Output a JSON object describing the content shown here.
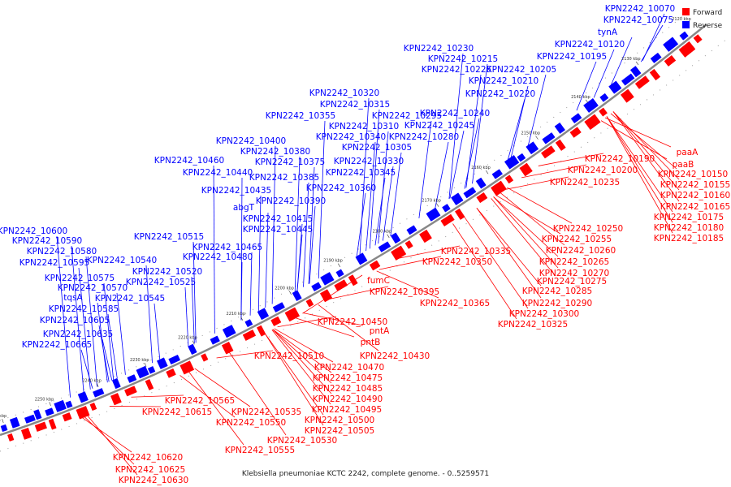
{
  "caption": "Klebsiella pneumoniae KCTC 2242, complete genome. - 0..5259571",
  "legend": [
    {
      "label": "Forward",
      "color": "#ff0000"
    },
    {
      "label": "Reverse",
      "color": "#0000ff"
    }
  ],
  "colors": {
    "forward": "#ff0000",
    "reverse": "#0000ff",
    "backbone": "#888888"
  },
  "ticks": [
    "2120 kbp",
    "2130 kbp",
    "2140 kbp",
    "2150 kbp",
    "2160 kbp",
    "2170 kbp",
    "2180 kbp",
    "2190 kbp",
    "2200 kbp",
    "2210 kbp",
    "2220 kbp",
    "2230 kbp",
    "2240 kbp",
    "2250 kbp",
    "2260 kbp"
  ],
  "reverse_labels": [
    "KPN2242_10070",
    "KPN2242_10075",
    "tynA",
    "KPN2242_10120",
    "KPN2242_10195",
    "KPN2242_10230",
    "KPN2242_10215",
    "KPN2242_10225",
    "KPN2242_10205",
    "KPN2242_10210",
    "KPN2242_10220",
    "KPN2242_10320",
    "KPN2242_10315",
    "KPN2242_10355",
    "KPN2242_10295",
    "KPN2242_10310",
    "KPN2242_10240",
    "KPN2242_10245",
    "KPN2242_10340",
    "KPN2242_10280",
    "KPN2242_10305",
    "KPN2242_10400",
    "KPN2242_10380",
    "KPN2242_10460",
    "KPN2242_10375",
    "KPN2242_10330",
    "KPN2242_10440",
    "KPN2242_10385",
    "KPN2242_10345",
    "KPN2242_10435",
    "KPN2242_10360",
    "abgT",
    "KPN2242_10390",
    "KPN2242_10415",
    "KPN2242_10600",
    "KPN2242_10445",
    "KPN2242_10515",
    "KPN2242_10590",
    "KPN2242_10465",
    "KPN2242_10580",
    "KPN2242_10480",
    "KPN2242_10595",
    "KPN2242_10540",
    "KPN2242_10520",
    "KPN2242_10575",
    "KPN2242_10525",
    "KPN2242_10570",
    "tqsA",
    "KPN2242_10545",
    "KPN2242_10585",
    "KPN2242_10605",
    "KPN2242_10635",
    "KPN2242_10665"
  ],
  "forward_labels": [
    "paaA",
    "KPN2242_10190",
    "paaB",
    "KPN2242_10200",
    "KPN2242_10150",
    "KPN2242_10235",
    "KPN2242_10155",
    "KPN2242_10160",
    "KPN2242_10165",
    "KPN2242_10175",
    "KPN2242_10180",
    "KPN2242_10185",
    "KPN2242_10250",
    "KPN2242_10255",
    "KPN2242_10260",
    "KPN2242_10335",
    "KPN2242_10265",
    "KPN2242_10350",
    "KPN2242_10270",
    "KPN2242_10275",
    "fumC",
    "KPN2242_10285",
    "KPN2242_10395",
    "KPN2242_10290",
    "KPN2242_10365",
    "KPN2242_10300",
    "KPN2242_10325",
    "KPN2242_10450",
    "pntA",
    "pntB",
    "KPN2242_10430",
    "KPN2242_10510",
    "KPN2242_10470",
    "KPN2242_10475",
    "KPN2242_10485",
    "KPN2242_10490",
    "KPN2242_10565",
    "KPN2242_10495",
    "KPN2242_10615",
    "KPN2242_10535",
    "KPN2242_10500",
    "KPN2242_10550",
    "KPN2242_10505",
    "KPN2242_10530",
    "KPN2242_10555",
    "KPN2242_10620",
    "KPN2242_10625",
    "KPN2242_10630"
  ]
}
